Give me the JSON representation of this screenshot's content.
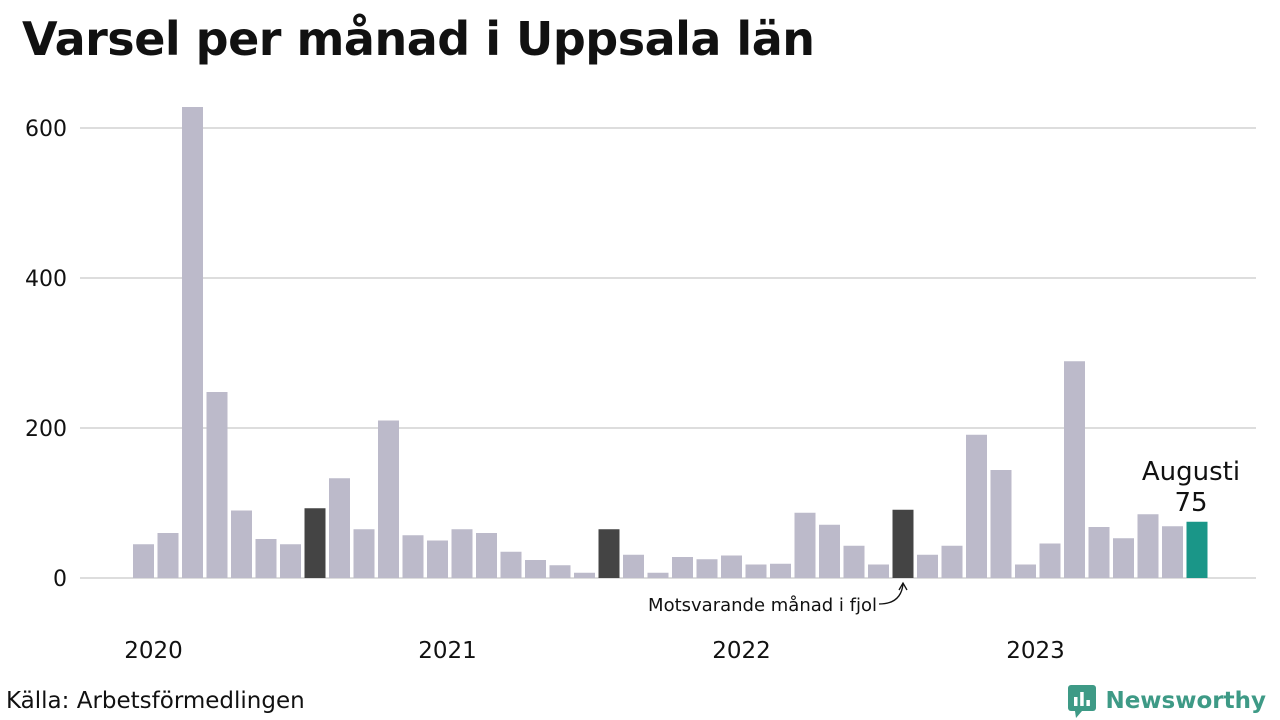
{
  "title": "Varsel per månad i Uppsala län",
  "source": "Källa: Arbetsförmedlingen",
  "brand": {
    "name": "Newsworthy",
    "icon": "newsworthy-logo-icon",
    "color": "#3e9a86"
  },
  "colors": {
    "default": "#bcbaca",
    "previous_year": "#444444",
    "current": "#1a9688",
    "grid": "#dddddd"
  },
  "chart_data": {
    "type": "bar",
    "title": "Varsel per månad i Uppsala län",
    "xlabel": "",
    "ylabel": "",
    "ylim": [
      0,
      650
    ],
    "yticks": [
      0,
      200,
      400,
      600
    ],
    "grid": true,
    "x_tick_labels": [
      "2020",
      "2021",
      "2022",
      "2023"
    ],
    "categories": [
      "2020-01",
      "2020-02",
      "2020-03",
      "2020-04",
      "2020-05",
      "2020-06",
      "2020-07",
      "2020-08",
      "2020-09",
      "2020-10",
      "2020-11",
      "2020-12",
      "2021-01",
      "2021-02",
      "2021-03",
      "2021-04",
      "2021-05",
      "2021-06",
      "2021-07",
      "2021-08",
      "2021-09",
      "2021-10",
      "2021-11",
      "2021-12",
      "2022-01",
      "2022-02",
      "2022-03",
      "2022-04",
      "2022-05",
      "2022-06",
      "2022-07",
      "2022-08",
      "2022-09",
      "2022-10",
      "2022-11",
      "2022-12",
      "2023-01",
      "2023-02",
      "2023-03",
      "2023-04",
      "2023-05",
      "2023-06",
      "2023-07",
      "2023-08"
    ],
    "values": [
      45,
      60,
      628,
      248,
      90,
      52,
      45,
      93,
      133,
      65,
      210,
      57,
      50,
      65,
      60,
      35,
      24,
      17,
      7,
      65,
      31,
      7,
      28,
      25,
      30,
      18,
      19,
      87,
      71,
      43,
      18,
      91,
      31,
      43,
      191,
      144,
      18,
      46,
      289,
      68,
      53,
      85,
      69,
      75
    ],
    "highlights": {
      "previous_year_same_month": [
        7,
        19,
        31
      ],
      "current": 43
    },
    "annotations": {
      "current_month": "Augusti",
      "current_value": "75",
      "comparison": "Motsvarande månad i fjol"
    }
  }
}
